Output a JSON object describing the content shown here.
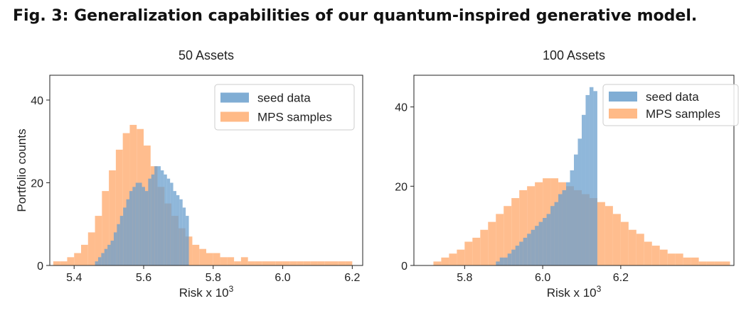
{
  "figure": {
    "title": "Fig. 3: Generalization capabilities of our quantum-inspired generative model."
  },
  "colors": {
    "seed": "#6a9fcd",
    "mps": "#ffb27a"
  },
  "chart_data": [
    {
      "type": "histogram",
      "title": "50 Assets",
      "xlabel": "Risk x 10",
      "xlabel_sup": "3",
      "ylabel": "Portfolio counts",
      "xlim": [
        5.33,
        6.23
      ],
      "ylim": [
        0,
        46
      ],
      "xticks": [
        5.4,
        5.6,
        5.8,
        6.0,
        6.2
      ],
      "xtick_labels": [
        "5.4",
        "5.6",
        "5.8",
        "6.0",
        "6.2"
      ],
      "yticks": [
        0,
        20,
        40
      ],
      "ytick_labels": [
        "0",
        "20",
        "40"
      ],
      "grid": false,
      "legend_position": "top-right",
      "series": [
        {
          "name": "seed data",
          "color": "#6a9fcd",
          "bins": {
            "start": 5.46,
            "end": 5.73,
            "n": 30
          },
          "counts": [
            1,
            2,
            3,
            4,
            5,
            6,
            8,
            10,
            12,
            14,
            16,
            18,
            19,
            20,
            20,
            19,
            18,
            21,
            22,
            24,
            24,
            23,
            22,
            21,
            20,
            18,
            17,
            16,
            14,
            12
          ]
        },
        {
          "name": "MPS samples",
          "color": "#ffb27a",
          "bins": {
            "start": 5.34,
            "end": 6.2,
            "n": 43
          },
          "counts": [
            1,
            1,
            2,
            3,
            5,
            8,
            12,
            18,
            23,
            28,
            32,
            34,
            33,
            29,
            24,
            19,
            15,
            12,
            9,
            7,
            5,
            4,
            3,
            3,
            2,
            2,
            1,
            2,
            1,
            1,
            1,
            1,
            1,
            1,
            1,
            1,
            1,
            1,
            1,
            1,
            1,
            1,
            1
          ]
        }
      ]
    },
    {
      "type": "histogram",
      "title": "100 Assets",
      "xlabel": "Risk x 10",
      "xlabel_sup": "3",
      "ylabel": "",
      "xlim": [
        5.67,
        6.49
      ],
      "ylim": [
        0,
        48
      ],
      "xticks": [
        5.8,
        6.0,
        6.2
      ],
      "xtick_labels": [
        "5.8",
        "6.0",
        "6.2"
      ],
      "yticks": [
        0,
        20,
        40
      ],
      "ytick_labels": [
        "0",
        "20",
        "40"
      ],
      "grid": false,
      "legend_position": "top-right",
      "series": [
        {
          "name": "seed data",
          "color": "#6a9fcd",
          "bins": {
            "start": 5.88,
            "end": 6.14,
            "n": 26
          },
          "counts": [
            1,
            2,
            2,
            3,
            4,
            5,
            6,
            7,
            8,
            9,
            10,
            11,
            12,
            13,
            15,
            16,
            18,
            19,
            21,
            24,
            28,
            32,
            38,
            43,
            45,
            44
          ]
        },
        {
          "name": "MPS samples",
          "color": "#ffb27a",
          "bins": {
            "start": 5.72,
            "end": 6.48,
            "n": 38
          },
          "counts": [
            1,
            2,
            3,
            4,
            6,
            7,
            9,
            11,
            13,
            15,
            17,
            19,
            20,
            21,
            22,
            22,
            21,
            20,
            19,
            18,
            17,
            16,
            15,
            13,
            11,
            9,
            8,
            6,
            5,
            4,
            3,
            3,
            2,
            2,
            1,
            1,
            1,
            1
          ]
        }
      ]
    }
  ]
}
